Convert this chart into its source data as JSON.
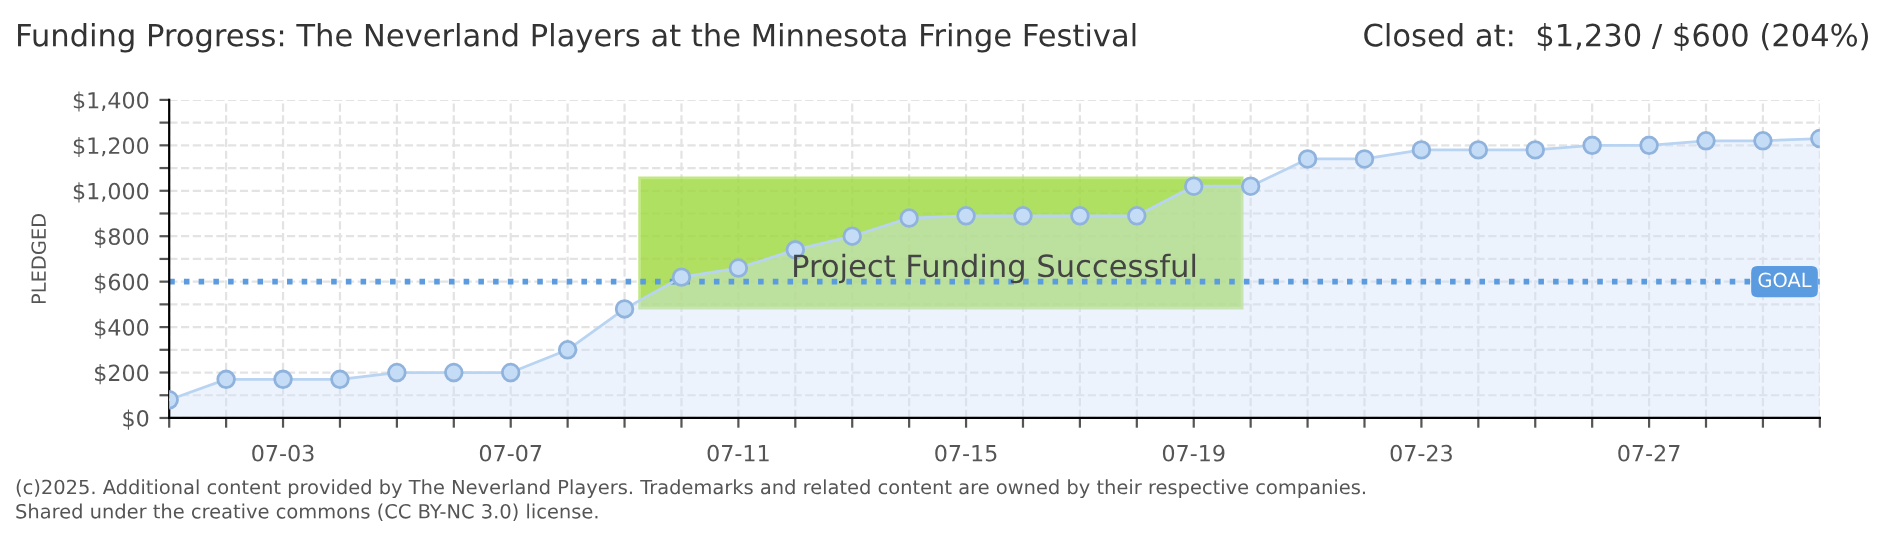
{
  "chart_data": {
    "type": "area",
    "title": "Funding Progress: The Neverland Players at the Minnesota Fringe Festival",
    "subtitle": "Closed at:  $1,230 / $600 (204%)",
    "ylabel": "PLEDGED",
    "categories": [
      null,
      null,
      "07-03",
      null,
      null,
      null,
      "07-07",
      null,
      null,
      null,
      "07-11",
      null,
      null,
      null,
      "07-15",
      null,
      null,
      null,
      "07-19",
      null,
      null,
      null,
      "07-23",
      null,
      null,
      null,
      "07-27",
      null,
      null,
      null
    ],
    "series": [
      {
        "color": "#b8d4f2",
        "values": [
          80,
          170,
          170,
          170,
          200,
          200,
          200,
          300,
          480,
          620,
          660,
          740,
          800,
          880,
          890,
          890,
          890,
          890,
          1020,
          1020,
          1140,
          1140,
          1180,
          1180,
          1180,
          1200,
          1200,
          1220,
          1220,
          1230
        ]
      }
    ],
    "ylim": [
      0,
      1400
    ],
    "yticks": [
      {
        "value": 0,
        "label": "$0"
      },
      {
        "value": 100,
        "label": null
      },
      {
        "value": 200,
        "label": "$200"
      },
      {
        "value": 300,
        "label": null
      },
      {
        "value": 400,
        "label": "$400"
      },
      {
        "value": 500,
        "label": null
      },
      {
        "value": 600,
        "label": "$600"
      },
      {
        "value": 700,
        "label": null
      },
      {
        "value": 800,
        "label": "$800"
      },
      {
        "value": 900,
        "label": null
      },
      {
        "value": 1000,
        "label": "$1,000"
      },
      {
        "value": 1100,
        "label": null
      },
      {
        "value": 1200,
        "label": "$1,200"
      },
      {
        "value": 1300,
        "label": null
      },
      {
        "value": 1400,
        "label": "$1,400"
      }
    ],
    "ref_lines": [
      {
        "axis": "y",
        "value": 600,
        "label": "GOAL",
        "color": "#5b9be0",
        "line_style": "dotted"
      }
    ],
    "annotations": [
      "Project Funding Successful",
      "(c)2025. Additional content provided by The Neverland Players. Trademarks and related content are owned by their respective companies.",
      "Shared under the creative commons (CC BY-NC 3.0) license."
    ],
    "grid": true,
    "marker": "circle",
    "legend": false
  }
}
